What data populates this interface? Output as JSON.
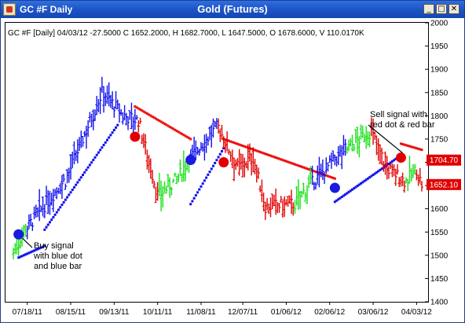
{
  "window": {
    "title_left": "GC #F Daily",
    "title_center": "Gold (Futures)",
    "controls": {
      "minimize": "_",
      "maximize": "□",
      "close": "✕"
    }
  },
  "info_line": "GC #F [Daily] 04/03/12  -27.5000 C 1652.2000, H 1682.7000, L 1647.5000, O 1678.6000, V 110.0170K",
  "price_tags": [
    {
      "text": "1704.70",
      "color": "#e00000"
    },
    {
      "text": "1652.10",
      "color": "#e00000"
    }
  ],
  "annotations": {
    "buy": [
      "Buy signal",
      "with blue dot",
      "and blue bar"
    ],
    "sell": [
      "Sell signal with",
      "red dot & red bar"
    ]
  },
  "colors": {
    "up": "#18e018",
    "down": "#e00000",
    "buy": "#1a1ae0",
    "stop_blue": "#1010ee",
    "stop_red": "#ee1010"
  },
  "chart_data": {
    "type": "ohlc",
    "title": "Gold (Futures)",
    "symbol": "GC #F",
    "ylim": [
      1400,
      2000
    ],
    "y_ticks": [
      1400,
      1450,
      1500,
      1550,
      1600,
      1650,
      1700,
      1750,
      1800,
      1850,
      1900,
      1950,
      2000
    ],
    "x_ticks": [
      "07/18/11",
      "08/15/11",
      "09/13/11",
      "10/11/11",
      "11/08/11",
      "12/07/11",
      "01/06/12",
      "02/06/12",
      "03/06/12",
      "04/03/12"
    ],
    "last": {
      "date": "04/03/12",
      "change": -27.5,
      "close": 1652.2,
      "high": 1682.7,
      "low": 1647.5,
      "open": 1678.6,
      "volume": "110.0170K"
    },
    "levels": {
      "stop": 1704.7,
      "close": 1652.1
    },
    "segments": [
      {
        "color": "green",
        "start": 1505,
        "end": 1560,
        "n": 8
      },
      {
        "color": "blue",
        "start": 1560,
        "end": 1660,
        "n": 22
      },
      {
        "color": "blue",
        "start": 1660,
        "end": 1850,
        "n": 22
      },
      {
        "color": "blue",
        "start": 1850,
        "end": 1800,
        "n": 12
      },
      {
        "color": "blue",
        "start": 1800,
        "end": 1790,
        "n": 8
      },
      {
        "color": "red",
        "start": 1790,
        "end": 1630,
        "n": 12
      },
      {
        "color": "green",
        "start": 1630,
        "end": 1660,
        "n": 10
      },
      {
        "color": "green",
        "start": 1660,
        "end": 1710,
        "n": 8
      },
      {
        "color": "blue",
        "start": 1710,
        "end": 1775,
        "n": 16
      },
      {
        "color": "red",
        "start": 1775,
        "end": 1690,
        "n": 12
      },
      {
        "color": "red",
        "start": 1690,
        "end": 1710,
        "n": 8
      },
      {
        "color": "red",
        "start": 1710,
        "end": 1605,
        "n": 8
      },
      {
        "color": "red",
        "start": 1605,
        "end": 1610,
        "n": 16
      },
      {
        "color": "green",
        "start": 1610,
        "end": 1655,
        "n": 10
      },
      {
        "color": "blue",
        "start": 1655,
        "end": 1730,
        "n": 20
      },
      {
        "color": "green",
        "start": 1730,
        "end": 1765,
        "n": 14
      },
      {
        "color": "red",
        "start": 1765,
        "end": 1685,
        "n": 10
      },
      {
        "color": "red",
        "start": 1685,
        "end": 1660,
        "n": 10
      },
      {
        "color": "green",
        "start": 1660,
        "end": 1680,
        "n": 6
      },
      {
        "color": "red",
        "start": 1680,
        "end": 1652,
        "n": 4
      }
    ],
    "signals": [
      {
        "type": "buy",
        "bar": 3,
        "price": 1545
      },
      {
        "type": "sell",
        "bar": 70,
        "price": 1755
      },
      {
        "type": "buy",
        "bar": 102,
        "price": 1705
      },
      {
        "type": "sell",
        "bar": 121,
        "price": 1700
      },
      {
        "type": "buy",
        "bar": 185,
        "price": 1645
      },
      {
        "type": "sell",
        "bar": 223,
        "price": 1710
      }
    ],
    "stops": [
      {
        "color": "blue",
        "from": 3,
        "to": 18,
        "start": 1495,
        "end": 1520
      },
      {
        "color": "blue",
        "from": 18,
        "to": 60,
        "start": 1555,
        "end": 1780
      },
      {
        "color": "red",
        "from": 70,
        "to": 102,
        "start": 1820,
        "end": 1750
      },
      {
        "color": "blue",
        "from": 102,
        "to": 121,
        "start": 1610,
        "end": 1730
      },
      {
        "color": "red",
        "from": 121,
        "to": 185,
        "start": 1750,
        "end": 1665
      },
      {
        "color": "blue",
        "from": 185,
        "to": 223,
        "start": 1615,
        "end": 1715
      },
      {
        "color": "red",
        "from": 223,
        "to": 255,
        "start": 1740,
        "end": 1705
      }
    ]
  }
}
